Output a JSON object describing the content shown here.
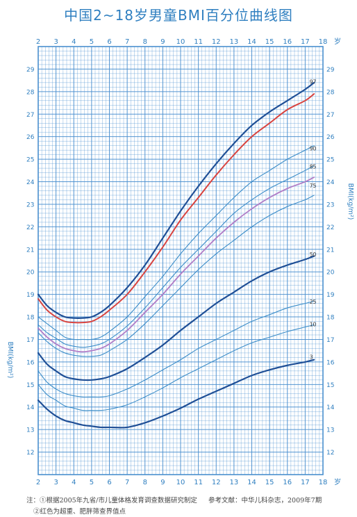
{
  "title": "中国2~18岁男童BMI百分位曲线图",
  "footnote": {
    "note1": "注：①根据2005年九省/市儿童体格发育调查数据研究制定",
    "reference": "参考文献：中华儿科杂志，2009年7期",
    "note2": "②红色为超重、肥胖筛查界值点"
  },
  "colors": {
    "grid": "#4a8fcf",
    "text": "#2f7fc0",
    "curve_dark": "#1f4f96",
    "curve_light": "#3a8cc8",
    "cutoff_overweight": "#b07cc6",
    "cutoff_obesity": "#d8433f"
  },
  "chart_data": {
    "type": "line",
    "title": "中国2~18岁男童BMI百分位曲线图",
    "x_unit": "岁",
    "ylabel": "BMI(kg/m²)",
    "x_ticks": [
      2,
      3,
      4,
      5,
      6,
      7,
      8,
      9,
      10,
      11,
      12,
      13,
      14,
      15,
      16,
      17,
      18
    ],
    "y_ticks": [
      12,
      13,
      14,
      15,
      16,
      17,
      18,
      19,
      20,
      21,
      22,
      23,
      24,
      25,
      26,
      27,
      28,
      29
    ],
    "xlim": [
      2,
      18
    ],
    "ylim": [
      11,
      30
    ],
    "grid": true,
    "x": [
      2,
      2.5,
      3,
      3.5,
      4,
      4.5,
      5,
      5.5,
      6,
      7,
      8,
      9,
      10,
      11,
      12,
      13,
      14,
      15,
      16,
      17,
      17.5
    ],
    "series": [
      {
        "name": "97",
        "style": "dark",
        "label_at": [
          17.25,
          28.25
        ],
        "values": [
          19.0,
          18.5,
          18.2,
          18.0,
          17.95,
          17.95,
          18.0,
          18.2,
          18.5,
          19.3,
          20.3,
          21.5,
          22.7,
          23.8,
          24.8,
          25.7,
          26.5,
          27.1,
          27.6,
          28.1,
          28.4
        ]
      },
      {
        "name": "",
        "style": "obesity",
        "values": [
          18.8,
          18.3,
          18.0,
          17.8,
          17.75,
          17.75,
          17.8,
          18.0,
          18.3,
          19.0,
          20.0,
          21.1,
          22.3,
          23.3,
          24.3,
          25.2,
          26.0,
          26.6,
          27.2,
          27.6,
          27.9
        ]
      },
      {
        "name": "90",
        "style": "light",
        "label_at": [
          17.25,
          25.3
        ],
        "values": [
          18.0,
          17.7,
          17.4,
          17.1,
          17.0,
          17.0,
          17.0,
          17.1,
          17.35,
          18.0,
          18.9,
          19.8,
          20.8,
          21.7,
          22.5,
          23.3,
          24.0,
          24.5,
          25.0,
          25.4,
          25.6
        ]
      },
      {
        "name": "85",
        "style": "light",
        "label_at": [
          17.25,
          24.5
        ],
        "values": [
          17.65,
          17.3,
          17.05,
          16.8,
          16.7,
          16.65,
          16.7,
          16.8,
          17.0,
          17.6,
          18.4,
          19.3,
          20.2,
          21.0,
          21.8,
          22.6,
          23.2,
          23.7,
          24.1,
          24.5,
          24.7
        ]
      },
      {
        "name": "",
        "style": "overweight",
        "values": [
          17.5,
          17.1,
          16.8,
          16.6,
          16.5,
          16.45,
          16.5,
          16.6,
          16.8,
          17.4,
          18.2,
          19.0,
          19.9,
          20.7,
          21.5,
          22.2,
          22.8,
          23.3,
          23.7,
          24.0,
          24.2
        ]
      },
      {
        "name": "75",
        "style": "light",
        "label_at": [
          17.25,
          23.65
        ],
        "values": [
          17.3,
          16.9,
          16.6,
          16.4,
          16.3,
          16.25,
          16.25,
          16.3,
          16.5,
          17.0,
          17.7,
          18.5,
          19.3,
          20.1,
          20.8,
          21.4,
          22.0,
          22.5,
          22.9,
          23.2,
          23.4
        ]
      },
      {
        "name": "50",
        "style": "dark",
        "label_at": [
          17.25,
          20.6
        ],
        "values": [
          16.4,
          15.9,
          15.6,
          15.35,
          15.25,
          15.2,
          15.2,
          15.25,
          15.35,
          15.7,
          16.2,
          16.75,
          17.4,
          18.0,
          18.6,
          19.1,
          19.6,
          20.0,
          20.3,
          20.55,
          20.7
        ]
      },
      {
        "name": "25",
        "style": "light",
        "label_at": [
          17.25,
          18.5
        ],
        "values": [
          15.6,
          15.1,
          14.8,
          14.6,
          14.5,
          14.45,
          14.45,
          14.45,
          14.5,
          14.8,
          15.2,
          15.65,
          16.1,
          16.6,
          17.0,
          17.4,
          17.8,
          18.1,
          18.4,
          18.6,
          18.7
        ]
      },
      {
        "name": "10",
        "style": "light",
        "label_at": [
          17.25,
          17.5
        ],
        "values": [
          15.0,
          14.55,
          14.3,
          14.05,
          13.95,
          13.85,
          13.85,
          13.85,
          13.9,
          14.1,
          14.45,
          14.85,
          15.3,
          15.7,
          16.1,
          16.5,
          16.85,
          17.1,
          17.35,
          17.55,
          17.65
        ]
      },
      {
        "name": "3",
        "style": "dark",
        "label_at": [
          17.25,
          16.05
        ],
        "values": [
          14.3,
          13.9,
          13.6,
          13.4,
          13.3,
          13.2,
          13.15,
          13.1,
          13.1,
          13.1,
          13.3,
          13.6,
          13.95,
          14.35,
          14.7,
          15.05,
          15.4,
          15.65,
          15.85,
          16.0,
          16.1
        ]
      }
    ]
  }
}
